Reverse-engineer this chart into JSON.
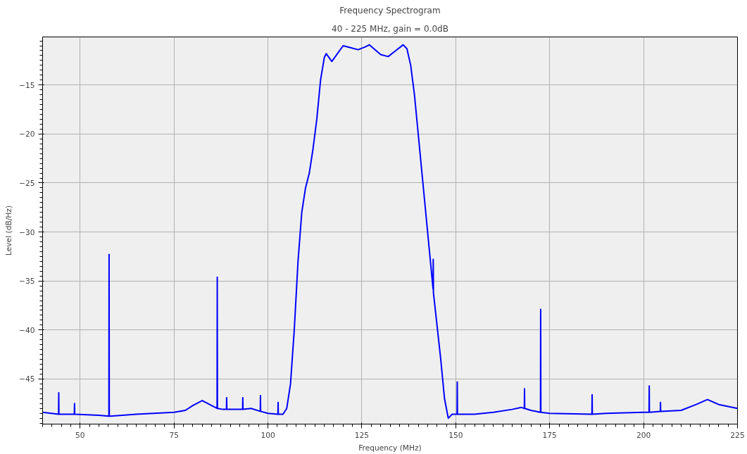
{
  "chart_data": {
    "type": "line",
    "title": "Frequency Spectrogram",
    "subtitle": "40 - 225 MHz, gain = 0.0dB",
    "xlabel": "Frequency (MHz)",
    "ylabel": "Level (dB/Hz)",
    "xlim": [
      40,
      225
    ],
    "ylim": [
      -49.6,
      -10.1
    ],
    "xticks": [
      50,
      75,
      100,
      125,
      150,
      175,
      200,
      225
    ],
    "yticks": [
      -45,
      -40,
      -35,
      -30,
      -25,
      -20,
      -15
    ],
    "grid": true,
    "series": [
      {
        "color": "#0000ff",
        "x": [
          40,
          44.25,
          44.3,
          44.35,
          45,
          48.45,
          48.5,
          48.55,
          55,
          57.65,
          57.7,
          57.75,
          58,
          65,
          75,
          78,
          80,
          82.5,
          85,
          86.45,
          86.5,
          86.55,
          88,
          88.95,
          89,
          89.05,
          93.25,
          93.3,
          93.35,
          95.5,
          97.95,
          98,
          98.05,
          100,
          102.65,
          102.7,
          102.75,
          104,
          105,
          106,
          107,
          108,
          109,
          110,
          111,
          112,
          113,
          114,
          115,
          115.5,
          117,
          118.5,
          120,
          122,
          124,
          126,
          127,
          130,
          132,
          134,
          136,
          137,
          138,
          139,
          140,
          141,
          142,
          143,
          143.95,
          144,
          144.05,
          145,
          146,
          147,
          148,
          149,
          150.35,
          150.4,
          150.45,
          155,
          160,
          165,
          167.5,
          168.25,
          168.3,
          168.35,
          170,
          172.55,
          172.6,
          172.65,
          175,
          186.25,
          186.3,
          186.35,
          190,
          200,
          201.45,
          201.5,
          201.55,
          204.45,
          204.5,
          204.55,
          210,
          214,
          217,
          220,
          225
        ],
        "values": [
          -48.4,
          -48.6,
          -46.4,
          -48.6,
          -48.6,
          -48.6,
          -47.5,
          -48.6,
          -48.7,
          -48.8,
          -32.3,
          -48.8,
          -48.8,
          -48.6,
          -48.4,
          -48.2,
          -47.7,
          -47.2,
          -47.7,
          -48.0,
          -34.6,
          -48.0,
          -48.1,
          -48.1,
          -46.9,
          -48.1,
          -48.1,
          -46.9,
          -48.1,
          -48.0,
          -48.3,
          -46.7,
          -48.3,
          -48.5,
          -48.6,
          -47.4,
          -48.6,
          -48.6,
          -48.0,
          -45.5,
          -40,
          -33,
          -28,
          -25.5,
          -24,
          -21.5,
          -18.5,
          -14.5,
          -12.2,
          -11.8,
          -12.6,
          -11.8,
          -11.0,
          -11.2,
          -11.4,
          -11.1,
          -10.9,
          -11.9,
          -12.1,
          -11.5,
          -10.9,
          -11.3,
          -13,
          -16,
          -20,
          -24,
          -28,
          -32,
          -35.8,
          -32.8,
          -36.2,
          -39.5,
          -43,
          -47,
          -49,
          -48.6,
          -48.6,
          -45.3,
          -48.6,
          -48.6,
          -48.4,
          -48.1,
          -47.9,
          -48.0,
          -46.0,
          -48.0,
          -48.2,
          -48.4,
          -37.9,
          -48.4,
          -48.5,
          -48.6,
          -46.6,
          -48.6,
          -48.5,
          -48.4,
          -48.4,
          -45.7,
          -48.4,
          -48.3,
          -47.4,
          -48.3,
          -48.2,
          -47.6,
          -47.1,
          -47.6,
          -48.0
        ]
      }
    ]
  }
}
